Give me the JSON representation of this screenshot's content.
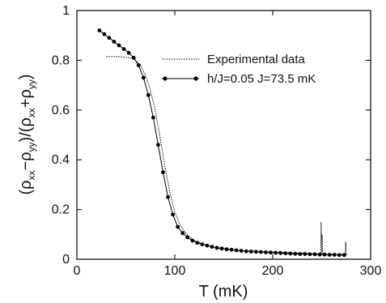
{
  "chart_data": {
    "type": "line",
    "xlabel": "T (mK)",
    "ylabel_parts": {
      "open": "(ρ",
      "sub1": "xx",
      "minus": "−ρ",
      "sub2": "yy",
      "mid": ")/(ρ",
      "sub3": "xx",
      "plus": "+ρ",
      "sub4": "yy",
      "close": ")"
    },
    "xlim": [
      0,
      300
    ],
    "ylim": [
      0,
      1
    ],
    "xticks": [
      0,
      100,
      200,
      300
    ],
    "yticks": [
      0,
      0.2,
      0.4,
      0.6,
      0.8,
      1
    ],
    "ytick_labels": [
      "0",
      "0.2",
      "0.4",
      "0.6",
      "0.8",
      "1"
    ],
    "legend_position": "top-right",
    "series": [
      {
        "name": "Experimental data",
        "style": "dotted",
        "x": [
          30,
          40,
          50,
          55,
          60,
          65,
          70,
          75,
          80,
          85,
          90,
          95,
          100,
          105,
          110,
          115,
          120,
          130,
          140,
          150,
          160,
          170,
          180,
          190,
          200,
          210,
          220,
          230,
          240,
          249,
          249.5,
          250,
          250.5,
          251,
          260,
          270,
          274,
          274.5,
          275,
          276
        ],
        "y": [
          0.815,
          0.815,
          0.812,
          0.81,
          0.8,
          0.78,
          0.74,
          0.68,
          0.6,
          0.49,
          0.37,
          0.27,
          0.19,
          0.14,
          0.11,
          0.09,
          0.075,
          0.06,
          0.05,
          0.045,
          0.04,
          0.035,
          0.035,
          0.03,
          0.03,
          0.028,
          0.025,
          0.025,
          0.022,
          0.02,
          0.15,
          0.02,
          0.1,
          0.02,
          0.02,
          0.02,
          0.02,
          0.07,
          0.02,
          0.02
        ]
      },
      {
        "name": "h/J=0.05 J=73.5 mK",
        "style": "solid-dots",
        "x": [
          23,
          28,
          33,
          38,
          43,
          48,
          53,
          58,
          63,
          68,
          73,
          78,
          83,
          88,
          93,
          98,
          103,
          108,
          113,
          118,
          123,
          128,
          133,
          138,
          143,
          148,
          153,
          158,
          163,
          168,
          173,
          178,
          183,
          188,
          193,
          198,
          203,
          208,
          213,
          218,
          223,
          228,
          233,
          238,
          243,
          248,
          253,
          258,
          263,
          268,
          273
        ],
        "y": [
          0.92,
          0.905,
          0.89,
          0.875,
          0.86,
          0.845,
          0.83,
          0.81,
          0.78,
          0.73,
          0.66,
          0.57,
          0.46,
          0.35,
          0.25,
          0.18,
          0.13,
          0.105,
          0.088,
          0.075,
          0.066,
          0.06,
          0.055,
          0.05,
          0.046,
          0.043,
          0.04,
          0.038,
          0.036,
          0.034,
          0.032,
          0.031,
          0.03,
          0.029,
          0.028,
          0.027,
          0.026,
          0.025,
          0.024,
          0.023,
          0.022,
          0.021,
          0.021,
          0.02,
          0.02,
          0.019,
          0.019,
          0.018,
          0.018,
          0.017,
          0.017
        ]
      }
    ]
  }
}
